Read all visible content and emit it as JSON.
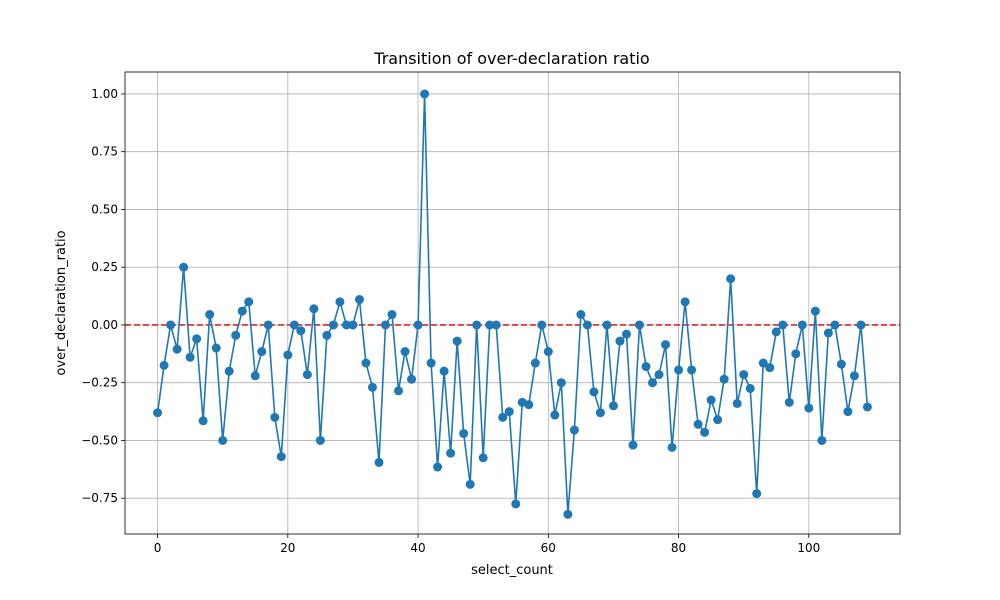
{
  "chart_data": {
    "type": "line",
    "title": "Transition of over-declaration ratio",
    "xlabel": "select_count",
    "ylabel": "over_declaration_ratio",
    "xlim": [
      -5,
      114
    ],
    "ylim": [
      -0.905,
      1.095
    ],
    "xticks": [
      0,
      20,
      40,
      60,
      80,
      100
    ],
    "xtick_labels": [
      "0",
      "20",
      "40",
      "60",
      "80",
      "100"
    ],
    "yticks": [
      -0.75,
      -0.5,
      -0.25,
      0.0,
      0.25,
      0.5,
      0.75,
      1.0
    ],
    "ytick_labels": [
      "−0.75",
      "−0.50",
      "−0.25",
      "0.00",
      "0.25",
      "0.50",
      "0.75",
      "1.00"
    ],
    "grid": true,
    "reference_line": {
      "y": 0.0,
      "style": "dashed",
      "color": "#d62728"
    },
    "series": [
      {
        "color": "#1f77b4",
        "marker": "circle",
        "x": [
          0,
          1,
          2,
          3,
          4,
          5,
          6,
          7,
          8,
          9,
          10,
          11,
          12,
          13,
          14,
          15,
          16,
          17,
          18,
          19,
          20,
          21,
          22,
          23,
          24,
          25,
          26,
          27,
          28,
          29,
          30,
          31,
          32,
          33,
          34,
          35,
          36,
          37,
          38,
          39,
          40,
          41,
          42,
          43,
          44,
          45,
          46,
          47,
          48,
          49,
          50,
          51,
          52,
          53,
          54,
          55,
          56,
          57,
          58,
          59,
          60,
          61,
          62,
          63,
          64,
          65,
          66,
          67,
          68,
          69,
          70,
          71,
          72,
          73,
          74,
          75,
          76,
          77,
          78,
          79,
          80,
          81,
          82,
          83,
          84,
          85,
          86,
          87,
          88,
          89,
          90,
          91,
          92,
          93,
          94,
          95,
          96,
          97,
          98,
          99,
          100,
          101,
          102,
          103,
          104,
          105,
          106,
          107,
          108,
          109
        ],
        "y": [
          -0.38,
          -0.175,
          0.0,
          -0.105,
          0.25,
          -0.14,
          -0.06,
          -0.415,
          0.045,
          -0.1,
          -0.5,
          -0.2,
          -0.045,
          0.06,
          0.1,
          -0.22,
          -0.115,
          0.0,
          -0.4,
          -0.57,
          -0.13,
          0.0,
          -0.025,
          -0.215,
          0.07,
          -0.5,
          -0.045,
          0.0,
          0.1,
          0.0,
          0.0,
          0.11,
          -0.165,
          -0.27,
          -0.595,
          0.0,
          0.045,
          -0.285,
          -0.115,
          -0.235,
          0.0,
          1.0,
          -0.165,
          -0.615,
          -0.2,
          -0.555,
          -0.07,
          -0.47,
          -0.69,
          0.0,
          -0.575,
          0.0,
          0.0,
          -0.4,
          -0.375,
          -0.775,
          -0.335,
          -0.345,
          -0.165,
          0.0,
          -0.115,
          -0.39,
          -0.25,
          -0.82,
          -0.455,
          0.045,
          0.0,
          -0.29,
          -0.38,
          0.0,
          -0.35,
          -0.07,
          -0.04,
          -0.52,
          0.0,
          -0.18,
          -0.25,
          -0.215,
          -0.085,
          -0.53,
          -0.195,
          0.1,
          -0.195,
          -0.43,
          -0.465,
          -0.325,
          -0.41,
          -0.235,
          0.2,
          -0.34,
          -0.215,
          -0.275,
          -0.73,
          -0.165,
          -0.185,
          -0.03,
          0.0,
          -0.335,
          -0.125,
          0.0,
          -0.36,
          0.06,
          -0.5,
          -0.035,
          0.0,
          -0.17,
          -0.375,
          -0.22,
          0.0,
          -0.355
        ]
      }
    ]
  }
}
